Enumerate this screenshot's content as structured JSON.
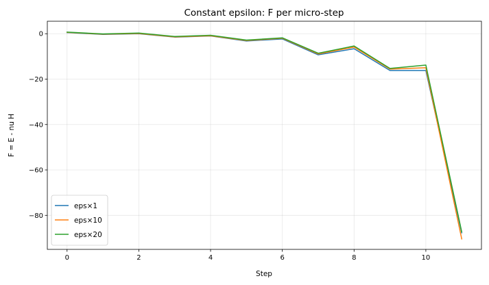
{
  "chart_data": {
    "type": "line",
    "title": "Constant epsilon: F per micro-step",
    "xlabel": "Step",
    "ylabel": "F = E - nu H",
    "xlim": [
      -0.55,
      11.55
    ],
    "ylim": [
      -95,
      5.5
    ],
    "xticks": [
      0,
      2,
      4,
      6,
      8,
      10
    ],
    "yticks": [
      0,
      -20,
      -40,
      -60,
      -80
    ],
    "grid": true,
    "legend_position": "lower-left",
    "x": [
      0,
      1,
      2,
      3,
      4,
      5,
      6,
      7,
      8,
      9,
      10,
      11
    ],
    "series": [
      {
        "name": "eps×1",
        "color": "#1f77b4",
        "values": [
          0.5,
          -0.3,
          0.0,
          -1.5,
          -1.0,
          -3.2,
          -2.3,
          -9.3,
          -6.6,
          -16.2,
          -16.2,
          -87.7
        ]
      },
      {
        "name": "eps×10",
        "color": "#ff7f0e",
        "values": [
          0.6,
          -0.2,
          0.1,
          -1.4,
          -0.9,
          -3.0,
          -2.0,
          -8.9,
          -5.9,
          -15.6,
          -15.0,
          -90.4
        ]
      },
      {
        "name": "eps×20",
        "color": "#2ca02c",
        "values": [
          0.7,
          -0.1,
          0.3,
          -1.2,
          -0.7,
          -2.8,
          -1.8,
          -8.6,
          -5.4,
          -15.3,
          -13.8,
          -87.3
        ]
      }
    ]
  }
}
